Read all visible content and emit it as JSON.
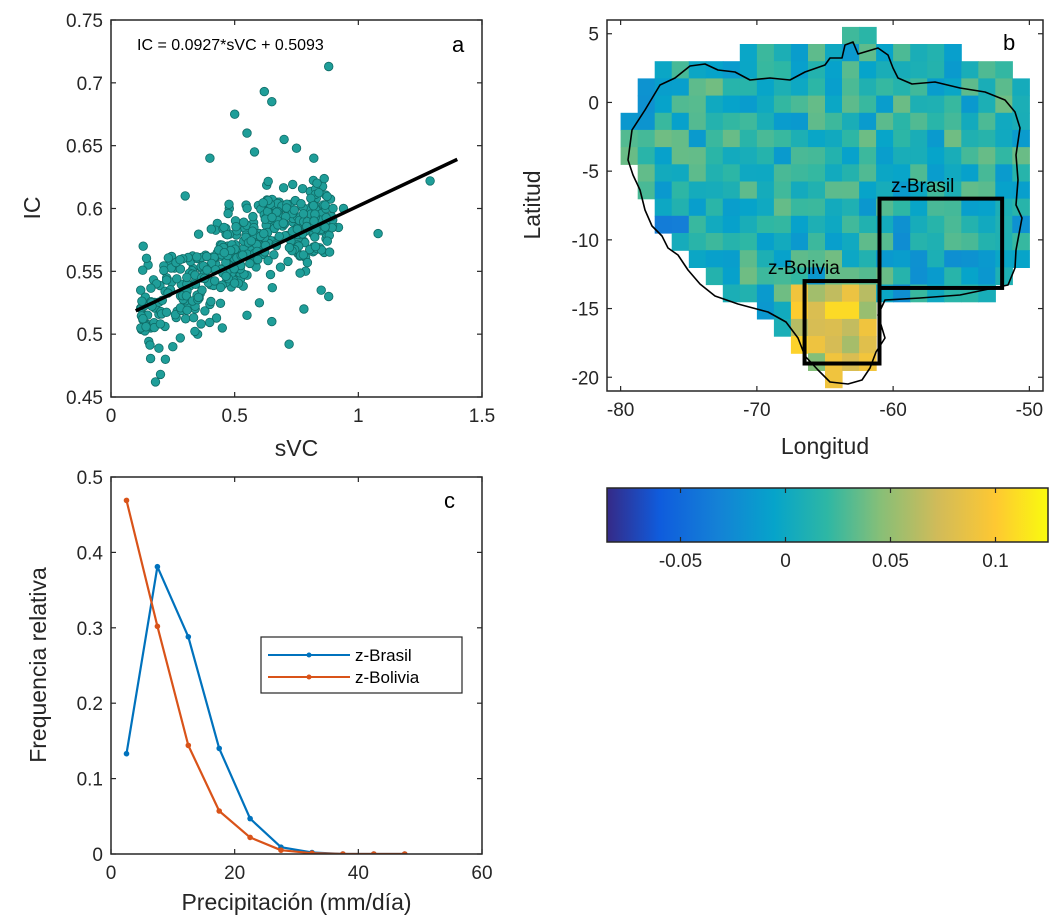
{
  "chart_data": [
    {
      "panel": "a",
      "type": "scatter",
      "panel_label": "a",
      "xlabel": "sVC",
      "ylabel": "IC",
      "xlim": [
        0,
        1.5
      ],
      "ylim": [
        0.45,
        0.75
      ],
      "xticks": [
        "0",
        "0.5",
        "1",
        "1.5"
      ],
      "yticks": [
        "0.45",
        "0.5",
        "0.55",
        "0.6",
        "0.65",
        "0.7",
        "0.75"
      ],
      "equation": "IC = 0.0927*sVC + 0.5093",
      "fit": {
        "slope": 0.0927,
        "intercept": 0.5093,
        "x_range": [
          0.1,
          1.4
        ],
        "color": "#000000"
      },
      "point_color": "#1f9e99",
      "grid": false,
      "points": [
        [
          0.88,
          0.713
        ],
        [
          1.29,
          0.622
        ],
        [
          1.08,
          0.58
        ],
        [
          0.62,
          0.693
        ],
        [
          0.5,
          0.675
        ],
        [
          0.65,
          0.685
        ],
        [
          0.55,
          0.66
        ],
        [
          0.7,
          0.655
        ],
        [
          0.58,
          0.645
        ],
        [
          0.75,
          0.648
        ],
        [
          0.82,
          0.64
        ],
        [
          0.4,
          0.64
        ],
        [
          0.3,
          0.61
        ],
        [
          0.94,
          0.6
        ],
        [
          0.92,
          0.585
        ],
        [
          0.18,
          0.462
        ],
        [
          0.2,
          0.468
        ],
        [
          0.22,
          0.48
        ],
        [
          0.25,
          0.49
        ],
        [
          0.28,
          0.497
        ],
        [
          0.72,
          0.492
        ],
        [
          0.85,
          0.535
        ],
        [
          0.88,
          0.53
        ],
        [
          0.78,
          0.52
        ],
        [
          0.65,
          0.51
        ],
        [
          0.12,
          0.535
        ],
        [
          0.15,
          0.555
        ],
        [
          0.18,
          0.54
        ],
        [
          0.13,
          0.57
        ],
        [
          0.14,
          0.515
        ],
        [
          0.16,
          0.505
        ],
        [
          0.35,
          0.5
        ],
        [
          0.45,
          0.505
        ],
        [
          0.55,
          0.515
        ],
        [
          0.6,
          0.525
        ]
      ]
    },
    {
      "panel": "b",
      "type": "heatmap",
      "panel_label": "b",
      "xlabel": "Longitud",
      "ylabel": "Latitud",
      "xlim": [
        -81,
        -49
      ],
      "ylim": [
        -21,
        6
      ],
      "xticks": [
        "-80",
        "-70",
        "-60",
        "-50"
      ],
      "yticks": [
        "5",
        "0",
        "-5",
        "-10",
        "-15",
        "-20"
      ],
      "colorbar": {
        "range": [
          -0.085,
          0.125
        ],
        "ticks": [
          "-0.05",
          "0",
          "0.05",
          "0.1"
        ],
        "tick_values": [
          -0.05,
          0,
          0.05,
          0.1
        ],
        "colormap": "parula"
      },
      "regions": [
        {
          "name": "z-Brasil",
          "lon": [
            -61,
            -52
          ],
          "lat": [
            -13.5,
            -7
          ]
        },
        {
          "name": "z-Bolivia",
          "lon": [
            -66.5,
            -61
          ],
          "lat": [
            -19,
            -13
          ]
        }
      ],
      "grid": false
    },
    {
      "panel": "c",
      "type": "line",
      "panel_label": "c",
      "xlabel": "Precipitación (mm/día)",
      "ylabel": "Frequencia relativa",
      "xlim": [
        0,
        60
      ],
      "ylim": [
        0,
        0.5
      ],
      "xticks": [
        "0",
        "20",
        "40",
        "60"
      ],
      "yticks": [
        "0",
        "0.1",
        "0.2",
        "0.3",
        "0.4",
        "0.5"
      ],
      "x": [
        2.5,
        7.5,
        12.5,
        17.5,
        22.5,
        27.5,
        32.5,
        37.5,
        42.5,
        47.5
      ],
      "legend_position": "center-right",
      "grid": false,
      "series": [
        {
          "name": "z-Brasil",
          "color": "#0072bd",
          "values": [
            0.133,
            0.381,
            0.288,
            0.14,
            0.047,
            0.009,
            0.002,
            0.0,
            0.0,
            0.0
          ]
        },
        {
          "name": "z-Bolivia",
          "color": "#d95319",
          "values": [
            0.469,
            0.302,
            0.144,
            0.057,
            0.022,
            0.005,
            0.001,
            0.0,
            0.0,
            0.0
          ]
        }
      ]
    }
  ]
}
